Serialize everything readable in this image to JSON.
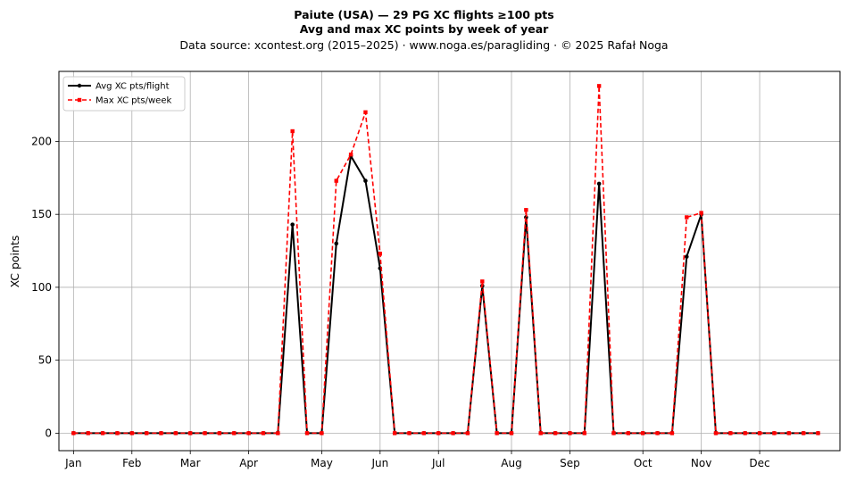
{
  "chart_data": {
    "type": "line",
    "title_line1": "Paiute (USA)  —  29 PG XC flights ≥100 pts",
    "title_line2": "Avg and max XC points by week of year",
    "subtitle": "Data source: xcontest.org (2015–2025)  ·  www.noga.es/paragliding  ·  © 2025 Rafał Noga",
    "xlabel": "",
    "ylabel": "XC points",
    "weeks": [
      1,
      2,
      3,
      4,
      5,
      6,
      7,
      8,
      9,
      10,
      11,
      12,
      13,
      14,
      15,
      16,
      17,
      18,
      19,
      20,
      21,
      22,
      23,
      24,
      25,
      26,
      27,
      28,
      29,
      30,
      31,
      32,
      33,
      34,
      35,
      36,
      37,
      38,
      39,
      40,
      41,
      42,
      43,
      44,
      45,
      46,
      47,
      48,
      49,
      50,
      51,
      52
    ],
    "xlim": [
      0,
      53.5
    ],
    "ylim": [
      -12,
      248
    ],
    "month_ticks": [
      {
        "label": "Jan",
        "week": 1
      },
      {
        "label": "Feb",
        "week": 5
      },
      {
        "label": "Mar",
        "week": 9
      },
      {
        "label": "Apr",
        "week": 13
      },
      {
        "label": "May",
        "week": 18
      },
      {
        "label": "Jun",
        "week": 22
      },
      {
        "label": "Jul",
        "week": 26
      },
      {
        "label": "Aug",
        "week": 31
      },
      {
        "label": "Sep",
        "week": 35
      },
      {
        "label": "Oct",
        "week": 40
      },
      {
        "label": "Nov",
        "week": 44
      },
      {
        "label": "Dec",
        "week": 48
      }
    ],
    "y_ticks": [
      0,
      50,
      100,
      150,
      200
    ],
    "grid": true,
    "legend_position": "top-left",
    "series": [
      {
        "name": "Avg XC pts/flight",
        "color": "#000000",
        "style": "solid",
        "marker": "circle",
        "values": [
          0,
          0,
          0,
          0,
          0,
          0,
          0,
          0,
          0,
          0,
          0,
          0,
          0,
          0,
          0,
          143,
          0,
          0,
          130,
          190,
          173,
          113,
          0,
          0,
          0,
          0,
          0,
          0,
          101,
          0,
          0,
          148,
          0,
          0,
          0,
          0,
          171,
          0,
          0,
          0,
          0,
          0,
          121,
          150,
          0,
          0,
          0,
          0,
          0,
          0,
          0,
          0
        ]
      },
      {
        "name": "Max XC pts/week",
        "color": "#ff0000",
        "style": "dashed",
        "marker": "square",
        "values": [
          0,
          0,
          0,
          0,
          0,
          0,
          0,
          0,
          0,
          0,
          0,
          0,
          0,
          0,
          0,
          207,
          0,
          0,
          173,
          191,
          220,
          123,
          0,
          0,
          0,
          0,
          0,
          0,
          104,
          0,
          0,
          153,
          0,
          0,
          0,
          0,
          238,
          0,
          0,
          0,
          0,
          0,
          148,
          151,
          0,
          0,
          0,
          0,
          0,
          0,
          0,
          0
        ]
      }
    ]
  }
}
